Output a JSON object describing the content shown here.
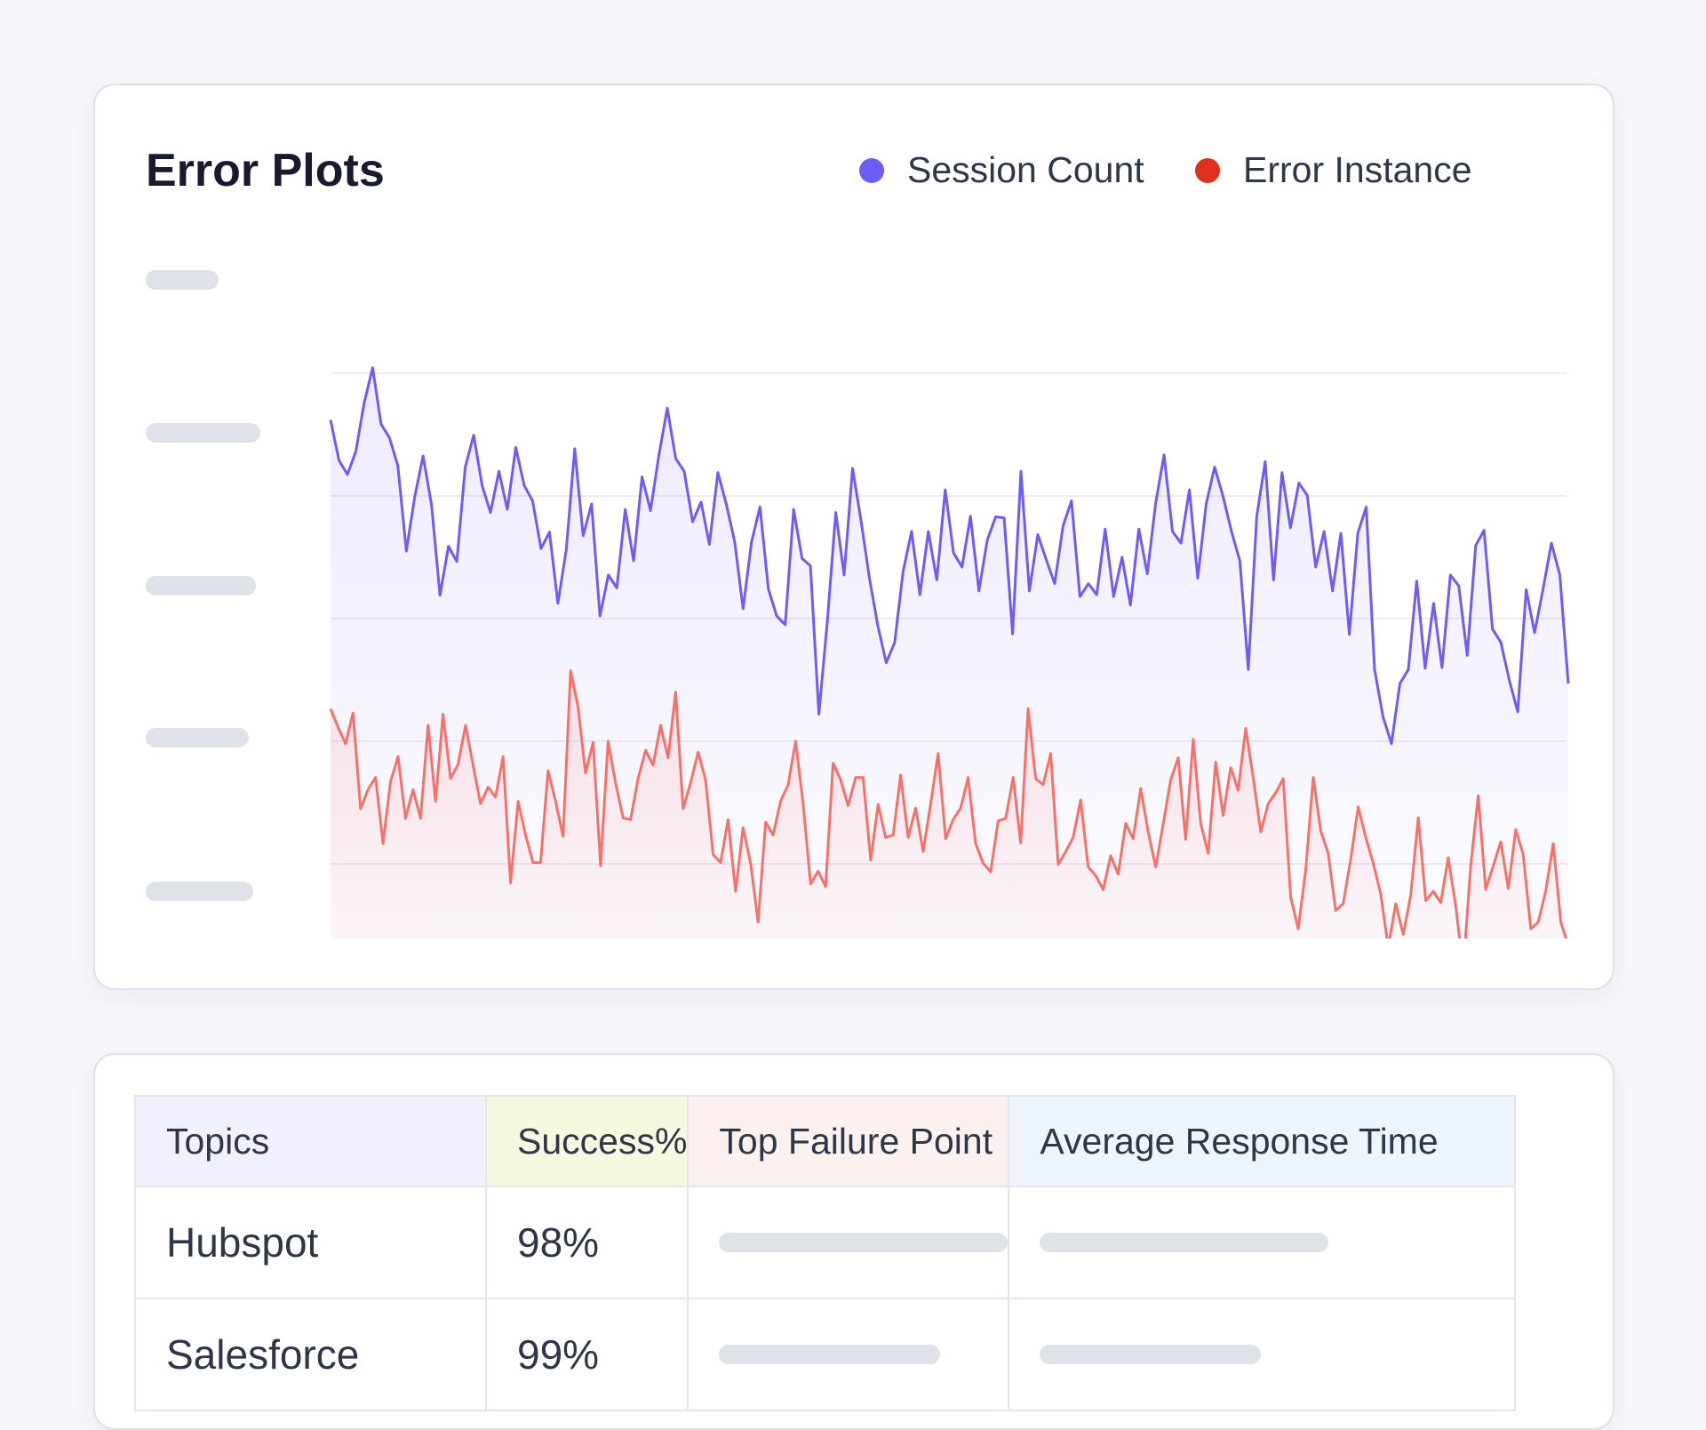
{
  "plot_card": {
    "title": "Error Plots",
    "legend": [
      {
        "label": "Session Count",
        "color": "#6e5cf6"
      },
      {
        "label": "Error Instance",
        "color": "#e0301e"
      }
    ]
  },
  "chart_data": {
    "type": "line",
    "title": "Error Plots",
    "xlabel": "",
    "ylabel": "",
    "y_tick_labels_visible": false,
    "ylim": [
      0,
      100
    ],
    "grid": true,
    "legend_position": "top-right",
    "series": [
      {
        "name": "Session Count",
        "color": "#6e5cf6",
        "line_color": "#6e5cf6",
        "values": [
          92.4,
          85.8,
          83.5,
          87.2,
          95.2,
          100.9,
          91.7,
          89.5,
          84.9,
          71.0,
          79.9,
          86.5,
          78.5,
          63.8,
          71.8,
          69.3,
          84.7,
          89.9,
          81.7,
          77.3,
          84.0,
          77.8,
          87.9,
          81.7,
          79.2,
          71.4,
          74.1,
          62.5,
          71.2,
          87.7,
          73.5,
          78.7,
          60.4,
          67.1,
          65.0,
          77.8,
          69.4,
          83.1,
          77.6,
          86.7,
          94.3,
          86.1,
          84.0,
          75.8,
          79.0,
          72.1,
          83.8,
          78.7,
          72.5,
          61.6,
          72.5,
          78.2,
          64.8,
          60.4,
          59.0,
          77.8,
          69.8,
          68.6,
          44.4,
          59.5,
          77.3,
          67.1,
          84.5,
          76.0,
          66.6,
          58.8,
          52.8,
          56.1,
          67.7,
          74.2,
          63.9,
          74.2,
          66.3,
          81.0,
          70.7,
          68.4,
          76.7,
          64.5,
          72.8,
          76.6,
          76.4,
          57.5,
          84.0,
          64.5,
          73.7,
          69.6,
          65.7,
          75.1,
          79.2,
          63.6,
          65.7,
          63.9,
          74.6,
          63.6,
          70.0,
          62.2,
          74.6,
          67.3,
          78.9,
          86.7,
          74.2,
          72.3,
          81.0,
          66.6,
          78.7,
          84.7,
          79.9,
          74.2,
          69.4,
          51.7,
          76.7,
          85.6,
          66.3,
          83.8,
          74.8,
          82.1,
          80.1,
          68.4,
          74.2,
          64.5,
          73.9,
          57.4,
          73.9,
          78.2,
          51.7,
          44.0,
          39.6,
          49.4,
          51.7,
          66.1,
          51.9,
          62.5,
          52.0,
          67.1,
          65.3,
          54.0,
          71.9,
          74.4,
          58.3,
          56.1,
          49.9,
          44.8,
          64.7,
          57.7,
          64.8,
          72.3,
          67.1,
          49.4
        ]
      },
      {
        "name": "Error Instance",
        "color": "#e0301e",
        "line_color": "#f7716a",
        "values": [
          45.3,
          42.3,
          39.6,
          44.6,
          29.0,
          32.1,
          34.1,
          23.3,
          33.4,
          37.5,
          27.4,
          32.1,
          27.4,
          42.6,
          30.2,
          44.4,
          33.9,
          36.2,
          42.6,
          36.1,
          29.8,
          32.5,
          30.9,
          37.5,
          16.9,
          30.2,
          24.7,
          20.2,
          20.2,
          35.2,
          30.2,
          24.5,
          51.5,
          45.6,
          34.8,
          39.8,
          19.7,
          40.0,
          33.2,
          27.5,
          27.2,
          33.9,
          38.5,
          36.1,
          42.6,
          37.3,
          48.0,
          29.0,
          33.2,
          38.2,
          33.7,
          21.5,
          20.2,
          27.2,
          15.5,
          25.9,
          20.1,
          10.5,
          26.8,
          24.7,
          30.2,
          32.9,
          40.0,
          29.8,
          16.7,
          18.8,
          16.3,
          36.4,
          33.7,
          29.5,
          34.1,
          34.1,
          20.6,
          29.7,
          24.3,
          24.7,
          34.5,
          24.3,
          29.1,
          22.0,
          29.8,
          38.0,
          24.1,
          27.2,
          29.1,
          34.1,
          23.3,
          20.1,
          18.7,
          27.0,
          27.4,
          34.1,
          23.4,
          45.3,
          33.9,
          32.9,
          38.0,
          19.9,
          22.0,
          24.3,
          30.4,
          19.5,
          18.1,
          15.8,
          21.3,
          18.3,
          26.6,
          24.1,
          32.3,
          25.2,
          19.5,
          26.5,
          33.7,
          37.3,
          24.0,
          40.3,
          26.6,
          21.7,
          36.6,
          27.9,
          35.7,
          32.0,
          42.1,
          34.1,
          25.2,
          29.8,
          31.6,
          33.9,
          14.6,
          9.4,
          19.0,
          34.1,
          25.4,
          21.7,
          12.4,
          13.5,
          20.8,
          29.3,
          24.3,
          20.1,
          15.1,
          6.4,
          13.5,
          8.5,
          14.9,
          27.5,
          14.0,
          15.5,
          13.7,
          21.0,
          13.1,
          2.8,
          19.7,
          31.1,
          15.8,
          19.7,
          23.6,
          16.0,
          25.6,
          21.5,
          9.4,
          10.5,
          15.6,
          23.3,
          10.5,
          6.7
        ]
      }
    ]
  },
  "table": {
    "headers": [
      "Topics",
      "Success%",
      "Top Failure Point",
      "Average Response Time"
    ],
    "header_colors": [
      "#f1f0fd",
      "#f4f9e0",
      "#fdf1f0",
      "#eef5fd"
    ],
    "rows": [
      {
        "topic": "Hubspot",
        "success": "98%"
      },
      {
        "topic": "Salesforce",
        "success": "99%"
      }
    ]
  }
}
